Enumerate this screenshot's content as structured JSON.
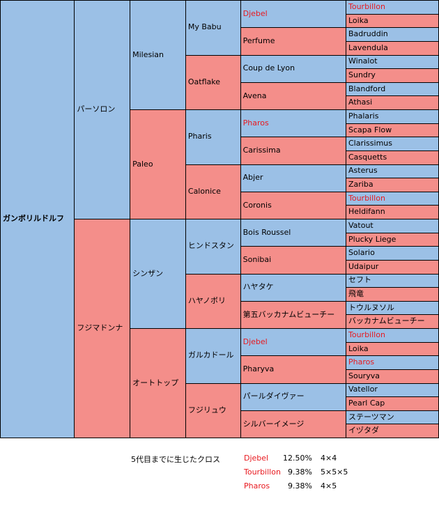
{
  "pedigree": {
    "subject": "ガンボリルドルフ",
    "g1": [
      {
        "name": "パーソロン",
        "sex": "m"
      },
      {
        "name": "フジマドンナ",
        "sex": "f"
      }
    ],
    "g2": [
      {
        "name": "Milesian",
        "sex": "m"
      },
      {
        "name": "Paleo",
        "sex": "f"
      },
      {
        "name": "シンザン",
        "sex": "m"
      },
      {
        "name": "オートトップ",
        "sex": "f"
      }
    ],
    "g3": [
      {
        "name": "My Babu",
        "sex": "m"
      },
      {
        "name": "Oatflake",
        "sex": "f"
      },
      {
        "name": "Pharis",
        "sex": "m"
      },
      {
        "name": "Calonice",
        "sex": "f"
      },
      {
        "name": "ヒンドスタン",
        "sex": "m"
      },
      {
        "name": "ハヤノボリ",
        "sex": "f"
      },
      {
        "name": "ガルカドール",
        "sex": "m"
      },
      {
        "name": "フジリュウ",
        "sex": "f"
      }
    ],
    "g4": [
      {
        "name": "Djebel",
        "sex": "m",
        "cross": true
      },
      {
        "name": "Perfume",
        "sex": "f"
      },
      {
        "name": "Coup de Lyon",
        "sex": "m"
      },
      {
        "name": "Avena",
        "sex": "f"
      },
      {
        "name": "Pharos",
        "sex": "m",
        "cross": true
      },
      {
        "name": "Carissima",
        "sex": "f"
      },
      {
        "name": "Abjer",
        "sex": "m"
      },
      {
        "name": "Coronis",
        "sex": "f"
      },
      {
        "name": "Bois Roussel",
        "sex": "m"
      },
      {
        "name": "Sonibai",
        "sex": "f"
      },
      {
        "name": "ハヤタケ",
        "sex": "m"
      },
      {
        "name": "第五バッカナムビューチー",
        "sex": "f"
      },
      {
        "name": "Djebel",
        "sex": "m",
        "cross": true
      },
      {
        "name": "Pharyva",
        "sex": "f"
      },
      {
        "name": "パールダイヴァー",
        "sex": "m"
      },
      {
        "name": "シルバーイメージ",
        "sex": "f"
      }
    ],
    "g5": [
      {
        "name": "Tourbillon",
        "sex": "m",
        "cross": true
      },
      {
        "name": "Loika",
        "sex": "f"
      },
      {
        "name": "Badruddin",
        "sex": "m"
      },
      {
        "name": "Lavendula",
        "sex": "f"
      },
      {
        "name": "Winalot",
        "sex": "m"
      },
      {
        "name": "Sundry",
        "sex": "f"
      },
      {
        "name": "Blandford",
        "sex": "m"
      },
      {
        "name": "Athasi",
        "sex": "f"
      },
      {
        "name": "Phalaris",
        "sex": "m"
      },
      {
        "name": "Scapa Flow",
        "sex": "f"
      },
      {
        "name": "Clarissimus",
        "sex": "m"
      },
      {
        "name": "Casquetts",
        "sex": "f"
      },
      {
        "name": "Asterus",
        "sex": "m"
      },
      {
        "name": "Zariba",
        "sex": "f"
      },
      {
        "name": "Tourbillon",
        "sex": "m",
        "cross": true
      },
      {
        "name": "Heldifann",
        "sex": "f"
      },
      {
        "name": "Vatout",
        "sex": "m"
      },
      {
        "name": "Plucky Liege",
        "sex": "f"
      },
      {
        "name": "Solario",
        "sex": "m"
      },
      {
        "name": "Udaipur",
        "sex": "f"
      },
      {
        "name": "セフト",
        "sex": "m"
      },
      {
        "name": "飛竜",
        "sex": "f"
      },
      {
        "name": "トウルヌソル",
        "sex": "m"
      },
      {
        "name": "バッカナムビューチー",
        "sex": "f"
      },
      {
        "name": "Tourbillon",
        "sex": "m",
        "cross": true
      },
      {
        "name": "Loika",
        "sex": "f"
      },
      {
        "name": "Pharos",
        "sex": "m",
        "cross": true
      },
      {
        "name": "Souryva",
        "sex": "f"
      },
      {
        "name": "Vatellor",
        "sex": "m"
      },
      {
        "name": "Pearl Cap",
        "sex": "f"
      },
      {
        "name": "ステーツマン",
        "sex": "m"
      },
      {
        "name": "イヅタダ",
        "sex": "f"
      }
    ]
  },
  "crosses": {
    "label": "5代目までに生じたクロス",
    "rows": [
      {
        "name": "Djebel",
        "percent": "12.50%",
        "pattern": "4×4"
      },
      {
        "name": "Tourbillon",
        "percent": "9.38%",
        "pattern": "5×5×5"
      },
      {
        "name": "Pharos",
        "percent": "9.38%",
        "pattern": "4×5"
      }
    ]
  },
  "colors": {
    "male": "#9bc0e6",
    "female": "#f48e8a",
    "cross_text": "#e8191f"
  }
}
